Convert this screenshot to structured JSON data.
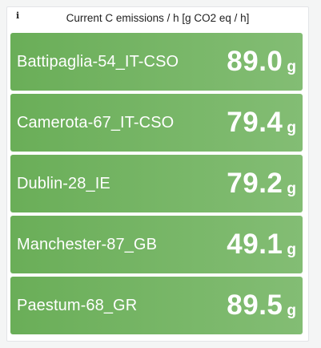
{
  "panel": {
    "info_icon": "i",
    "title": "Current C emissions / h [g CO2 eq / h]"
  },
  "stats": [
    {
      "name": "Battipaglia-54_IT-CSO",
      "value": "89.0",
      "unit": "g"
    },
    {
      "name": "Camerota-67_IT-CSO",
      "value": "79.4",
      "unit": "g"
    },
    {
      "name": "Dublin-28_IE",
      "value": "79.2",
      "unit": "g"
    },
    {
      "name": "Manchester-87_GB",
      "value": "49.1",
      "unit": "g"
    },
    {
      "name": "Paestum-68_GR",
      "value": "89.5",
      "unit": "g"
    }
  ],
  "colors": {
    "tile_gradient_start": "#6aae58",
    "tile_gradient_end": "#83bd74",
    "text": "#ffffff"
  }
}
